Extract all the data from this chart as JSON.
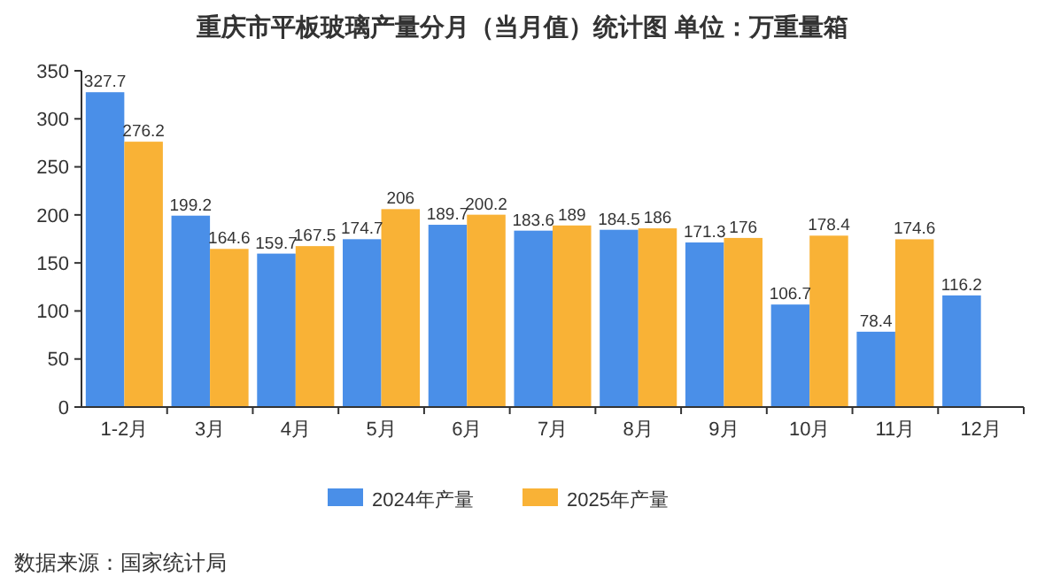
{
  "chart_data": {
    "type": "bar",
    "title": "重庆市平板玻璃产量分月（当月值）统计图 单位：万重量箱",
    "categories": [
      "1-2月",
      "3月",
      "4月",
      "5月",
      "6月",
      "7月",
      "8月",
      "9月",
      "10月",
      "11月",
      "12月"
    ],
    "series": [
      {
        "name": "2024年产量",
        "color": "#4a8fe8",
        "values": [
          327.7,
          199.2,
          159.7,
          174.7,
          189.7,
          183.6,
          184.5,
          171.3,
          106.7,
          78.4,
          116.2
        ]
      },
      {
        "name": "2025年产量",
        "color": "#f9b236",
        "values": [
          276.2,
          164.6,
          167.5,
          206,
          200.2,
          189,
          186,
          176,
          178.4,
          174.6,
          null
        ]
      }
    ],
    "ylim": [
      0,
      350
    ],
    "yticks": [
      0,
      50,
      100,
      150,
      200,
      250,
      300,
      350
    ],
    "data_labels": true,
    "legend": "bottom",
    "annotations": [
      "数据来源：国家统计局"
    ]
  }
}
